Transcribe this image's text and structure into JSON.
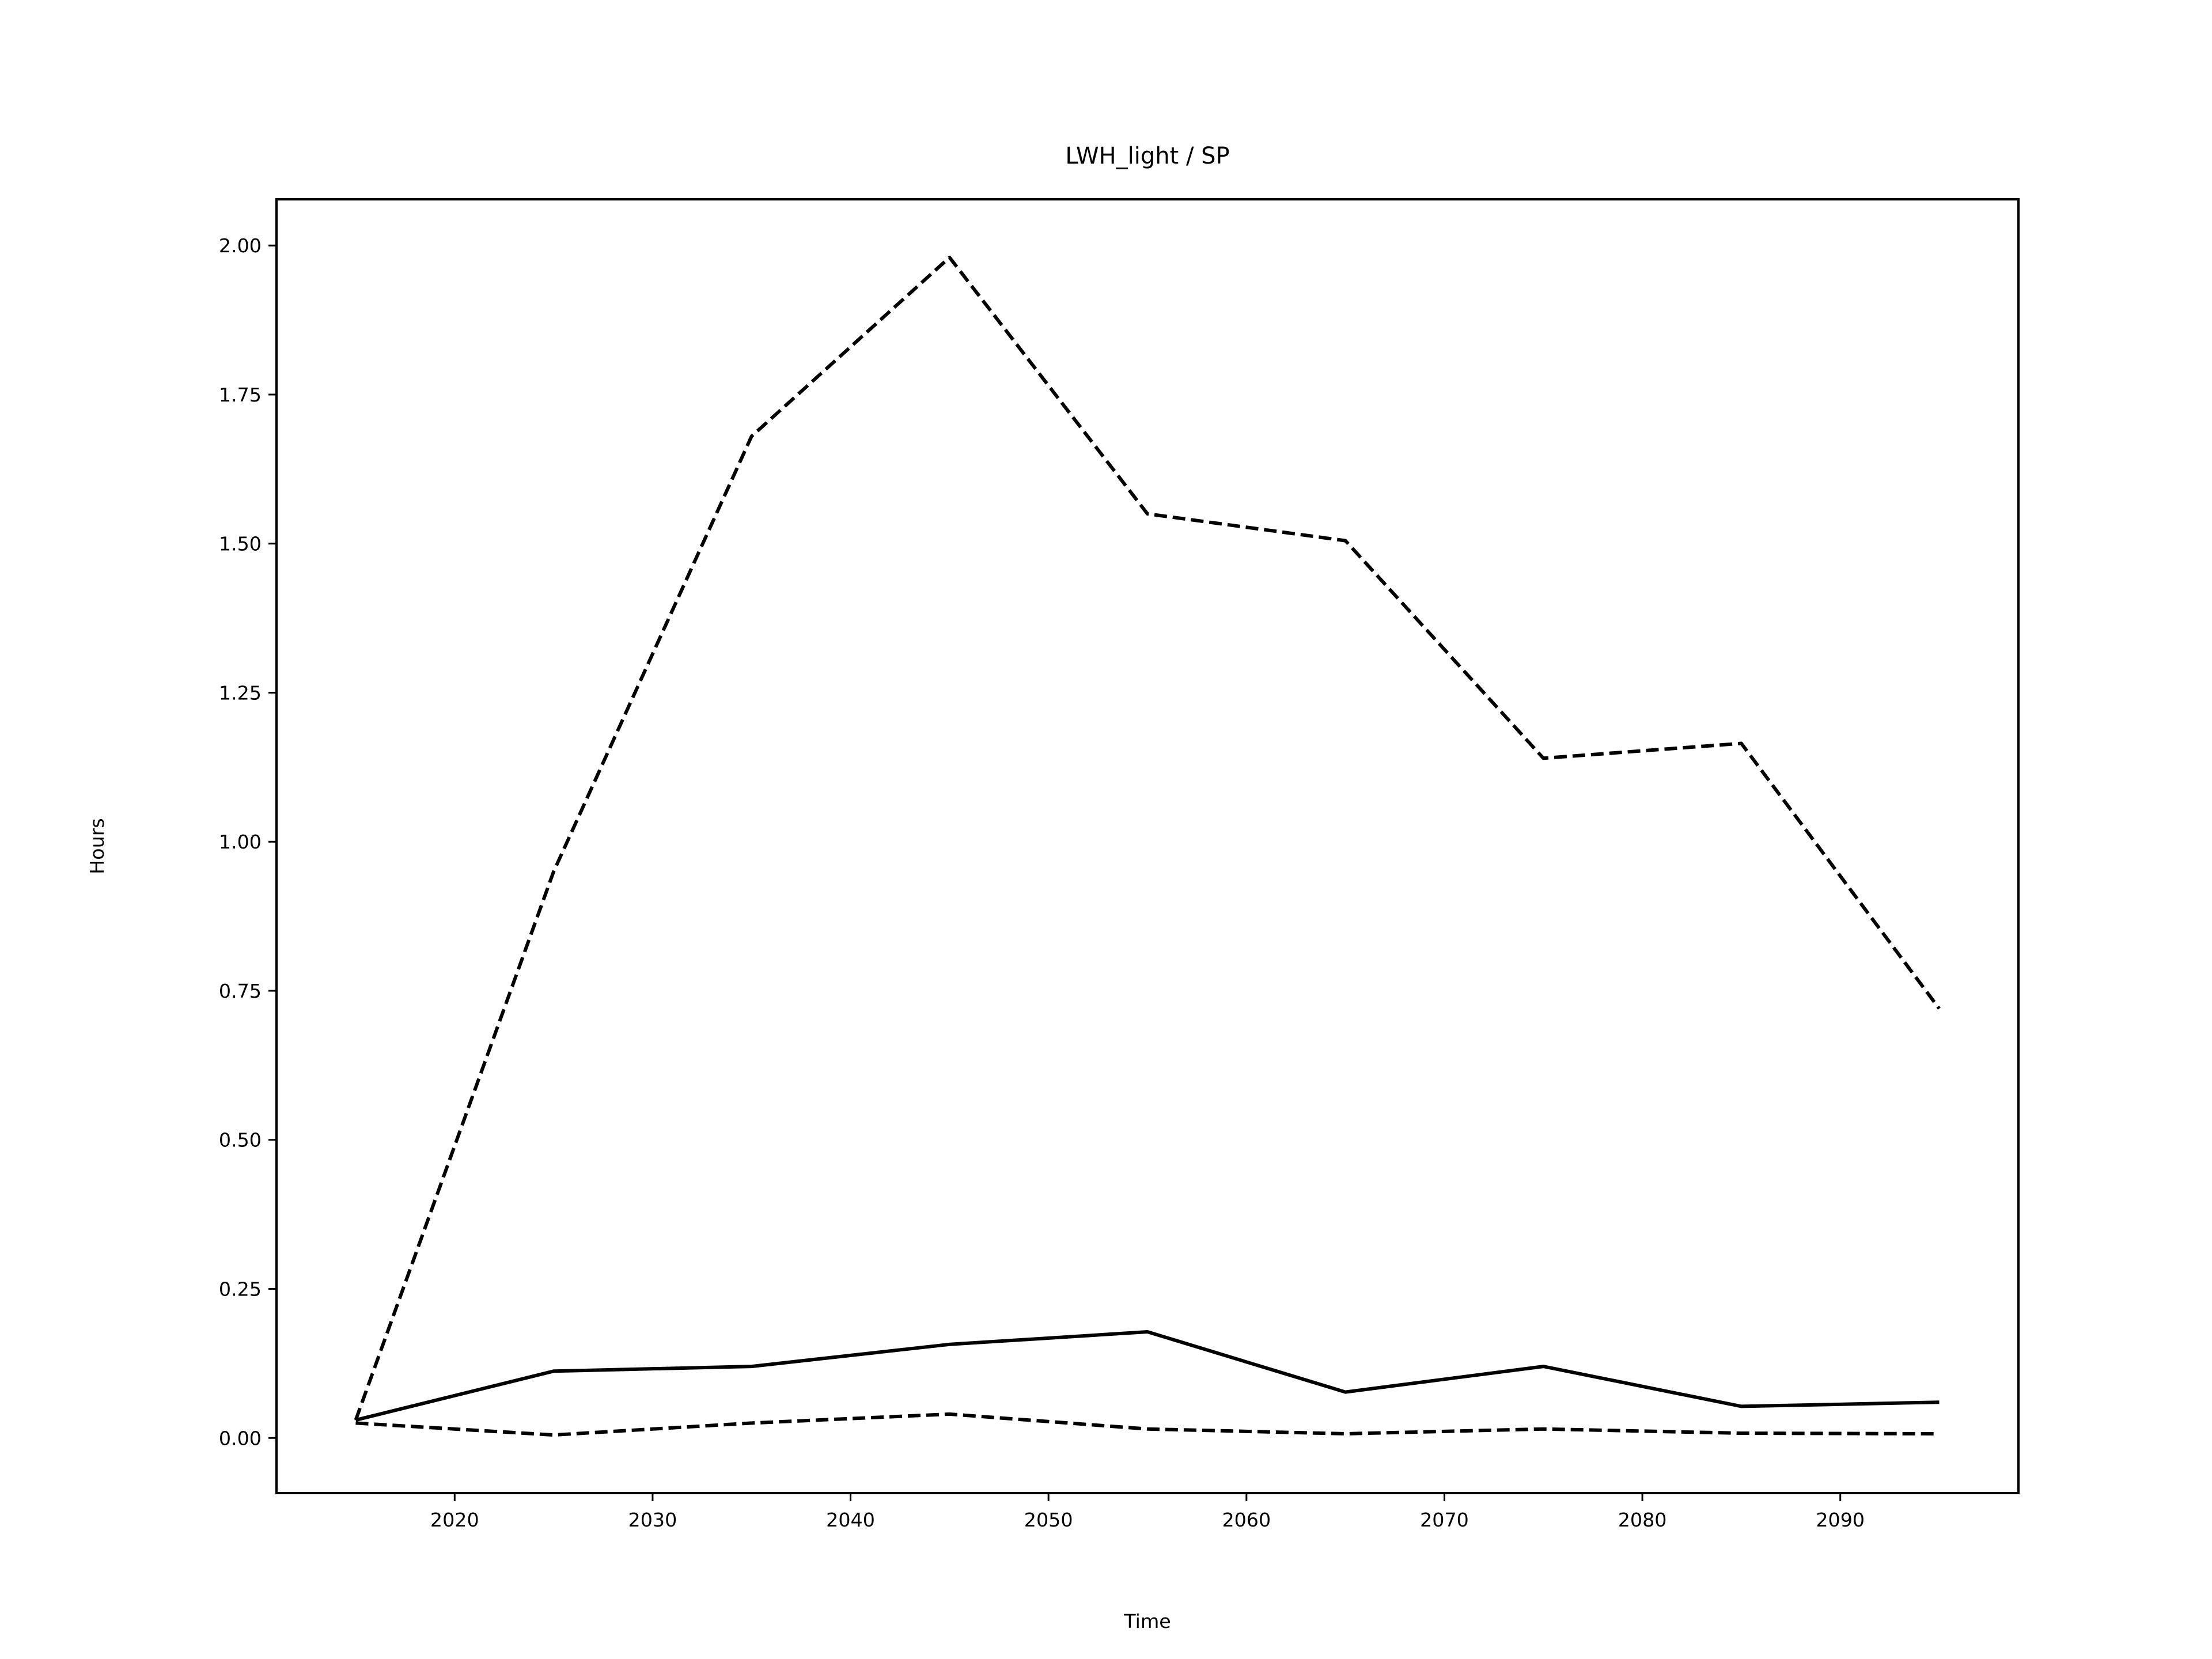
{
  "chart_data": {
    "type": "line",
    "title": "LWH_light / SP",
    "xlabel": "Time",
    "ylabel": "Hours",
    "xlim": [
      2011,
      2099
    ],
    "ylim": [
      -0.0925,
      2.0775
    ],
    "xticks": [
      2020,
      2030,
      2040,
      2050,
      2060,
      2070,
      2080,
      2090
    ],
    "yticks": [
      0.0,
      0.25,
      0.5,
      0.75,
      1.0,
      1.25,
      1.5,
      1.75,
      2.0
    ],
    "ytick_labels": [
      "0.00",
      "0.25",
      "0.50",
      "0.75",
      "1.00",
      "1.25",
      "1.50",
      "1.75",
      "2.00"
    ],
    "grid": false,
    "legend": "none",
    "color": "#000000",
    "x": [
      2015,
      2025,
      2035,
      2045,
      2055,
      2065,
      2075,
      2085,
      2095
    ],
    "series": [
      {
        "style": "dashed",
        "values": [
          0.03,
          0.95,
          1.68,
          1.98,
          1.55,
          1.505,
          1.14,
          1.165,
          0.72
        ]
      },
      {
        "style": "solid",
        "values": [
          0.03,
          0.112,
          0.12,
          0.157,
          0.178,
          0.077,
          0.12,
          0.053,
          0.06
        ]
      },
      {
        "style": "dashed",
        "values": [
          0.025,
          0.005,
          0.025,
          0.04,
          0.015,
          0.007,
          0.015,
          0.008,
          0.007
        ]
      }
    ]
  }
}
